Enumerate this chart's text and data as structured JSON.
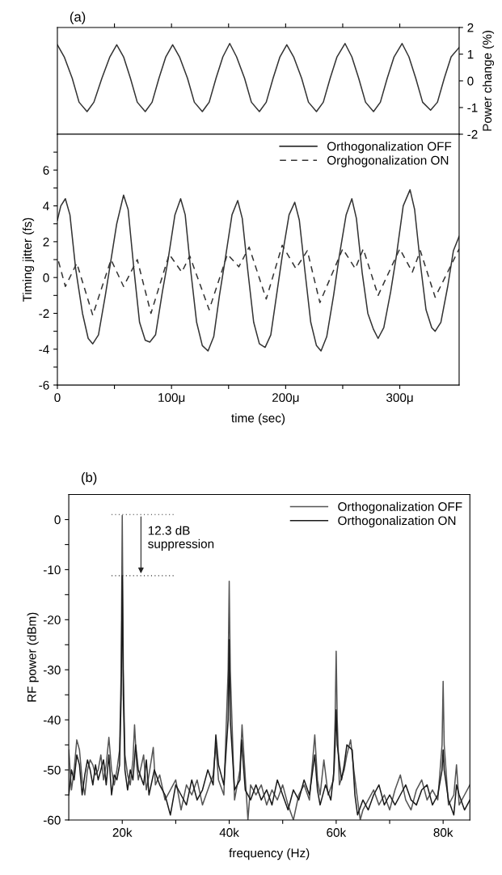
{
  "chart_data": [
    {
      "type": "line",
      "title": "(a)",
      "ylabel": "Power change (%)",
      "xlim": [
        0,
        352
      ],
      "ylim": [
        -2,
        2
      ],
      "yticks": [
        -2,
        -1,
        0,
        1,
        2
      ],
      "tick_labels": "y",
      "xticks": [
        {
          "value": 50,
          "label": null
        },
        {
          "value": 100,
          "label": null
        },
        {
          "value": 150,
          "label": null
        },
        {
          "value": 200,
          "label": null
        },
        {
          "value": 250,
          "label": null
        },
        {
          "value": 300,
          "label": null
        }
      ],
      "series": [
        {
          "color": "#333333",
          "x": [
            0,
            6,
            13,
            19,
            26,
            32,
            39,
            46,
            52,
            58,
            64,
            70,
            77,
            83,
            89,
            95,
            101,
            107,
            114,
            120,
            127,
            133,
            139,
            145,
            151,
            157,
            164,
            170,
            177,
            183,
            189,
            195,
            201,
            207,
            214,
            220,
            227,
            233,
            239,
            245,
            252,
            258,
            264,
            270,
            277,
            283,
            289,
            295,
            302,
            308,
            314,
            320,
            327,
            333,
            339,
            345,
            352
          ],
          "values": [
            1.35,
            0.9,
            0.1,
            -0.8,
            -1.15,
            -0.8,
            0.1,
            0.9,
            1.35,
            0.9,
            0.1,
            -0.8,
            -1.15,
            -0.8,
            0.1,
            0.9,
            1.35,
            0.9,
            0.1,
            -0.8,
            -1.15,
            -0.8,
            0.1,
            0.9,
            1.4,
            0.9,
            0.1,
            -0.8,
            -1.15,
            -0.8,
            0.1,
            0.9,
            1.35,
            0.9,
            0.1,
            -0.8,
            -1.15,
            -0.8,
            0.1,
            0.9,
            1.4,
            0.9,
            0.1,
            -0.8,
            -1.15,
            -0.8,
            0.1,
            0.9,
            1.4,
            0.9,
            0.1,
            -0.8,
            -1.1,
            -0.8,
            0.1,
            0.9,
            1.25
          ]
        }
      ]
    },
    {
      "type": "line",
      "xlabel": "time (sec)",
      "ylabel": "Timing jitter (fs)",
      "xlim": [
        0,
        352
      ],
      "ylim": [
        -6,
        8
      ],
      "legend": "top right",
      "xticks": [
        0,
        {
          "value": 50,
          "label": null
        },
        {
          "value": 100,
          "label": "100μ"
        },
        {
          "value": 150,
          "label": null
        },
        {
          "value": 200,
          "label": "200μ"
        },
        {
          "value": 250,
          "label": null
        },
        {
          "value": 300,
          "label": "300μ"
        }
      ],
      "yticks": [
        -6,
        {
          "value": -5,
          "label": null
        },
        -4,
        {
          "value": -3,
          "label": null
        },
        -2,
        {
          "value": -1,
          "label": null
        },
        0,
        {
          "value": 1,
          "label": null
        },
        2,
        {
          "value": 3,
          "label": null
        },
        4,
        {
          "value": 5,
          "label": null
        },
        6,
        {
          "value": 7,
          "label": null
        }
      ],
      "series": [
        {
          "name": "Orthogonalization OFF",
          "color": "#333333",
          "line_style": "solid",
          "x": [
            0,
            3,
            7,
            11,
            16,
            22,
            27,
            31,
            36,
            42,
            47,
            52,
            58,
            62,
            67,
            72,
            77,
            81,
            86,
            92,
            97,
            103,
            108,
            112,
            117,
            122,
            127,
            132,
            137,
            142,
            147,
            153,
            158,
            162,
            167,
            172,
            177,
            182,
            187,
            192,
            197,
            203,
            208,
            212,
            217,
            222,
            227,
            231,
            236,
            242,
            247,
            253,
            258,
            262,
            267,
            272,
            277,
            281,
            286,
            292,
            297,
            303,
            309,
            313,
            318,
            323,
            328,
            331,
            336,
            342,
            347,
            352
          ],
          "values": [
            3.2,
            4.0,
            4.4,
            3.5,
            0.5,
            -2.0,
            -3.4,
            -3.7,
            -3.2,
            -1.0,
            1.0,
            3.0,
            4.6,
            3.8,
            0.5,
            -2.5,
            -3.5,
            -3.6,
            -3.2,
            -0.8,
            1.0,
            3.5,
            4.4,
            3.5,
            0.3,
            -2.5,
            -3.8,
            -4.1,
            -3.3,
            -1.0,
            1.0,
            3.5,
            4.3,
            3.3,
            0.3,
            -2.5,
            -3.7,
            -3.9,
            -3.2,
            -1.0,
            1.2,
            3.5,
            4.2,
            3.2,
            0.3,
            -2.5,
            -3.8,
            -4.1,
            -3.3,
            -1.0,
            1.2,
            3.5,
            4.4,
            3.3,
            0.3,
            -2.0,
            -2.9,
            -3.4,
            -2.8,
            -0.8,
            1.2,
            4.0,
            4.9,
            3.8,
            0.8,
            -1.8,
            -2.8,
            -3.0,
            -2.5,
            -0.5,
            1.5,
            2.3
          ]
        },
        {
          "name": "Orghogonalization ON",
          "color": "#333333",
          "line_style": "dashed",
          "x": [
            1,
            7,
            17,
            31,
            47,
            58,
            70,
            82,
            98,
            109,
            116,
            133,
            149,
            159,
            168,
            183,
            197,
            209,
            219,
            230,
            250,
            261,
            268,
            281,
            300,
            311,
            318,
            331,
            352
          ],
          "values": [
            0.9,
            -0.5,
            0.8,
            -2.1,
            1.0,
            -0.5,
            1.0,
            -2.0,
            1.3,
            0.3,
            1.2,
            -1.8,
            1.3,
            0.6,
            1.7,
            -1.2,
            1.8,
            0.5,
            1.5,
            -1.4,
            1.6,
            0.5,
            1.6,
            -1.0,
            1.6,
            0.3,
            1.5,
            -1.1,
            1.6
          ]
        }
      ]
    },
    {
      "type": "line",
      "title": "(b)",
      "xlabel": "frequency (Hz)",
      "ylabel": "RF power (dBm)",
      "xlim": [
        10000,
        85000
      ],
      "ylim": [
        -60,
        5
      ],
      "legend": "top right",
      "xticks": [
        {
          "value": 20000,
          "label": "20k"
        },
        {
          "value": 30000,
          "label": null
        },
        {
          "value": 40000,
          "label": "40k"
        },
        {
          "value": 50000,
          "label": null
        },
        {
          "value": 60000,
          "label": "60k"
        },
        {
          "value": 70000,
          "label": null
        },
        {
          "value": 80000,
          "label": "80k"
        }
      ],
      "yticks": [
        -60,
        {
          "value": -55,
          "label": null
        },
        -50,
        {
          "value": -45,
          "label": null
        },
        -40,
        {
          "value": -35,
          "label": null
        },
        -30,
        {
          "value": -25,
          "label": null
        },
        -20,
        {
          "value": -15,
          "label": null
        },
        -10,
        {
          "value": -5,
          "label": null
        },
        0
      ],
      "annotations": [
        {
          "text": "12.3 dB\nsuppression",
          "x": 23500,
          "y": -11.2
        }
      ],
      "series": [
        {
          "name": "Orthogonalization OFF",
          "color": "#555555",
          "line_style": "solid",
          "x": [
            10000,
            10500,
            11000,
            11500,
            12000,
            12500,
            13000,
            13500,
            14000,
            14500,
            15000,
            15500,
            16000,
            16500,
            17000,
            17500,
            18000,
            18500,
            19000,
            19500,
            19800,
            20000,
            20200,
            20500,
            21000,
            21500,
            22000,
            22300,
            22700,
            23000,
            24000,
            24500,
            25000,
            25800,
            26200,
            27000,
            28000,
            29000,
            30000,
            31000,
            32000,
            33000,
            34000,
            35000,
            36000,
            37000,
            37500,
            38000,
            39000,
            39800,
            40000,
            40200,
            41000,
            42000,
            42400,
            42800,
            43500,
            44000,
            45000,
            46000,
            47000,
            48000,
            49000,
            50000,
            51000,
            52000,
            53000,
            54000,
            55000,
            56000,
            56500,
            57000,
            57700,
            58500,
            59500,
            59800,
            60000,
            60200,
            60600,
            61500,
            62000,
            62700,
            63300,
            64000,
            64500,
            65000,
            66000,
            67000,
            68000,
            69000,
            70000,
            71000,
            72000,
            73000,
            74000,
            75000,
            76000,
            77000,
            78000,
            79000,
            79800,
            80000,
            80200,
            81000,
            82000,
            82500,
            83000,
            84000,
            85000
          ],
          "values": [
            -46,
            -54,
            -50,
            -44,
            -46,
            -52,
            -55,
            -50,
            -48,
            -49,
            -51,
            -50,
            -47,
            -52,
            -49,
            -43.5,
            -50,
            -53,
            -50,
            -46,
            -30,
            0.8,
            -30,
            -47,
            -51,
            -53,
            -48,
            -41,
            -49,
            -52,
            -47,
            -54,
            -51,
            -45.5,
            -53,
            -51,
            -56,
            -54,
            -52,
            -58,
            -53,
            -55,
            -52,
            -57,
            -54,
            -51,
            -45,
            -52,
            -55,
            -30,
            -12.3,
            -30,
            -56,
            -50,
            -41,
            -48,
            -60,
            -53,
            -55,
            -53,
            -57,
            -54,
            -56,
            -53,
            -57,
            -60,
            -55,
            -53,
            -56,
            -43,
            -52,
            -55,
            -48,
            -55,
            -52,
            -40,
            -26.3,
            -40,
            -53,
            -50,
            -47,
            -44,
            -50,
            -56,
            -60,
            -58,
            -56,
            -54,
            -57,
            -55,
            -58,
            -54,
            -51,
            -56,
            -58,
            -54,
            -52,
            -56,
            -54,
            -56,
            -45,
            -32.3,
            -45,
            -57,
            -55,
            -49,
            -57,
            -55,
            -53
          ]
        },
        {
          "name": "Orthogonalization ON",
          "color": "#1a1a1a",
          "line_style": "solid",
          "x": [
            10000,
            10500,
            11000,
            11500,
            12000,
            12500,
            13000,
            13500,
            14000,
            14500,
            15000,
            15500,
            16000,
            16500,
            17000,
            17500,
            18000,
            18500,
            19000,
            19500,
            19800,
            20000,
            20200,
            20500,
            21000,
            21500,
            22000,
            22500,
            23000,
            24000,
            24500,
            25000,
            26000,
            27000,
            28000,
            29000,
            30000,
            31000,
            32000,
            33000,
            34000,
            35000,
            36000,
            37000,
            37500,
            38000,
            39000,
            39800,
            40000,
            40200,
            41000,
            42000,
            42300,
            43000,
            44000,
            45000,
            46000,
            47000,
            48000,
            49000,
            50000,
            51000,
            52000,
            53000,
            54000,
            55000,
            56000,
            56500,
            57000,
            58000,
            59000,
            59600,
            59800,
            60000,
            60200,
            61000,
            61500,
            62000,
            63000,
            63500,
            64000,
            65000,
            66000,
            67000,
            68000,
            69000,
            70000,
            71000,
            72000,
            73000,
            74000,
            75000,
            76000,
            77000,
            78000,
            79000,
            79800,
            80000,
            80200,
            81000,
            82000,
            82500,
            83000,
            84000,
            85000
          ],
          "values": [
            -55,
            -50,
            -52,
            -47,
            -49,
            -55,
            -51,
            -48,
            -50,
            -53,
            -49,
            -52,
            -50,
            -48,
            -53,
            -47,
            -55,
            -51,
            -52,
            -49,
            -35,
            -11.2,
            -35,
            -50,
            -54,
            -50,
            -52,
            -45,
            -50,
            -53,
            -48,
            -55,
            -50,
            -53,
            -55,
            -59,
            -53,
            -55,
            -57,
            -52,
            -56,
            -54,
            -50,
            -53,
            -43,
            -49,
            -53,
            -40,
            -24,
            -40,
            -54,
            -52,
            -44,
            -54,
            -56,
            -53,
            -56,
            -54,
            -57,
            -52,
            -55,
            -58,
            -54,
            -56,
            -52,
            -55,
            -47,
            -54,
            -57,
            -53,
            -56,
            -50,
            -45,
            -38,
            -45,
            -52,
            -49,
            -45,
            -46,
            -55,
            -59,
            -56,
            -58,
            -55,
            -53,
            -57,
            -55,
            -57,
            -55,
            -53,
            -56,
            -57,
            -54,
            -53,
            -57,
            -55,
            -50,
            -46,
            -50,
            -56,
            -59,
            -53,
            -55,
            -58,
            -56
          ]
        },
        {
          "color": "#333333",
          "line_style": "dotted",
          "x": [
            18000,
            30000
          ],
          "values": [
            1,
            1
          ]
        },
        {
          "color": "#333333",
          "line_style": "dotted",
          "x": [
            18000,
            30000
          ],
          "values": [
            -11.2,
            -11.2
          ]
        }
      ]
    }
  ]
}
